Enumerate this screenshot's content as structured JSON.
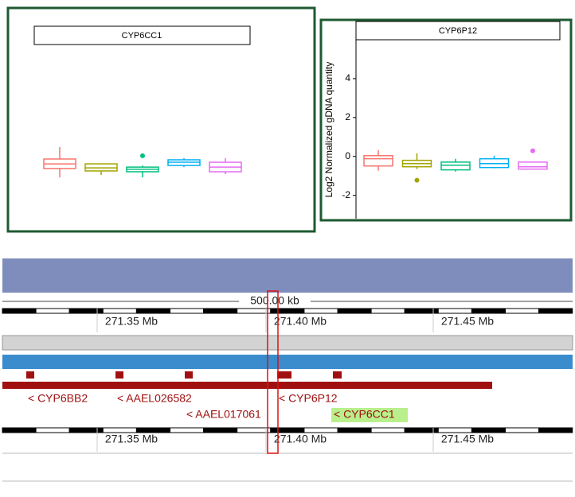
{
  "chart_data": [
    {
      "type": "box",
      "title": "CYP6CC1",
      "ylim": [
        -3.2,
        6
      ],
      "boxes": [
        {
          "color": "#f8766d",
          "values": [
            -0.57,
            -0.13,
            0.1,
            0.34,
            0.93
          ],
          "outliers": []
        },
        {
          "color": "#a3a500",
          "values": [
            -0.45,
            -0.25,
            -0.1,
            0.1,
            0.1
          ],
          "outliers": []
        },
        {
          "color": "#00bf7d",
          "values": [
            -0.57,
            -0.29,
            -0.17,
            -0.06,
            0.02
          ],
          "outliers": [
            0.5
          ]
        },
        {
          "color": "#00b0f6",
          "values": [
            -0.06,
            0.02,
            0.18,
            0.3,
            0.38
          ],
          "outliers": []
        },
        {
          "color": "#e76bf3",
          "values": [
            -0.41,
            -0.29,
            -0.06,
            0.18,
            0.38
          ],
          "outliers": []
        }
      ]
    },
    {
      "type": "box",
      "title": "CYP6P12",
      "y_label": "Log2 Normalized gDNA quantity",
      "ylim": [
        -3.2,
        6
      ],
      "yticks": [
        -2,
        0,
        2,
        4
      ],
      "boxes": [
        {
          "color": "#f8766d",
          "values": [
            -0.73,
            -0.49,
            -0.12,
            0.04,
            0.33
          ],
          "outliers": []
        },
        {
          "color": "#a3a500",
          "values": [
            -0.65,
            -0.53,
            -0.37,
            -0.2,
            0.16
          ],
          "outliers": [
            -1.22
          ]
        },
        {
          "color": "#00bf7d",
          "values": [
            -0.78,
            -0.69,
            -0.45,
            -0.29,
            -0.12
          ],
          "outliers": []
        },
        {
          "color": "#00b0f6",
          "values": [
            -0.61,
            -0.57,
            -0.37,
            -0.12,
            0.04
          ],
          "outliers": []
        },
        {
          "color": "#e76bf3",
          "values": [
            -0.65,
            -0.65,
            -0.53,
            -0.29,
            -0.29
          ],
          "outliers": [
            0.29
          ]
        }
      ]
    }
  ],
  "browser": {
    "scale": "500.00 kb",
    "top_ruler": [
      "271.35 Mb",
      "271.40 Mb",
      "271.45 Mb"
    ],
    "bottom_ruler": [
      "271.35 Mb",
      "271.40 Mb",
      "271.45 Mb"
    ],
    "genes": [
      "< CYP6BB2",
      "< AAEL026582",
      "< CYP6P12",
      "< AAEL017061",
      "< CYP6CC1"
    ]
  }
}
